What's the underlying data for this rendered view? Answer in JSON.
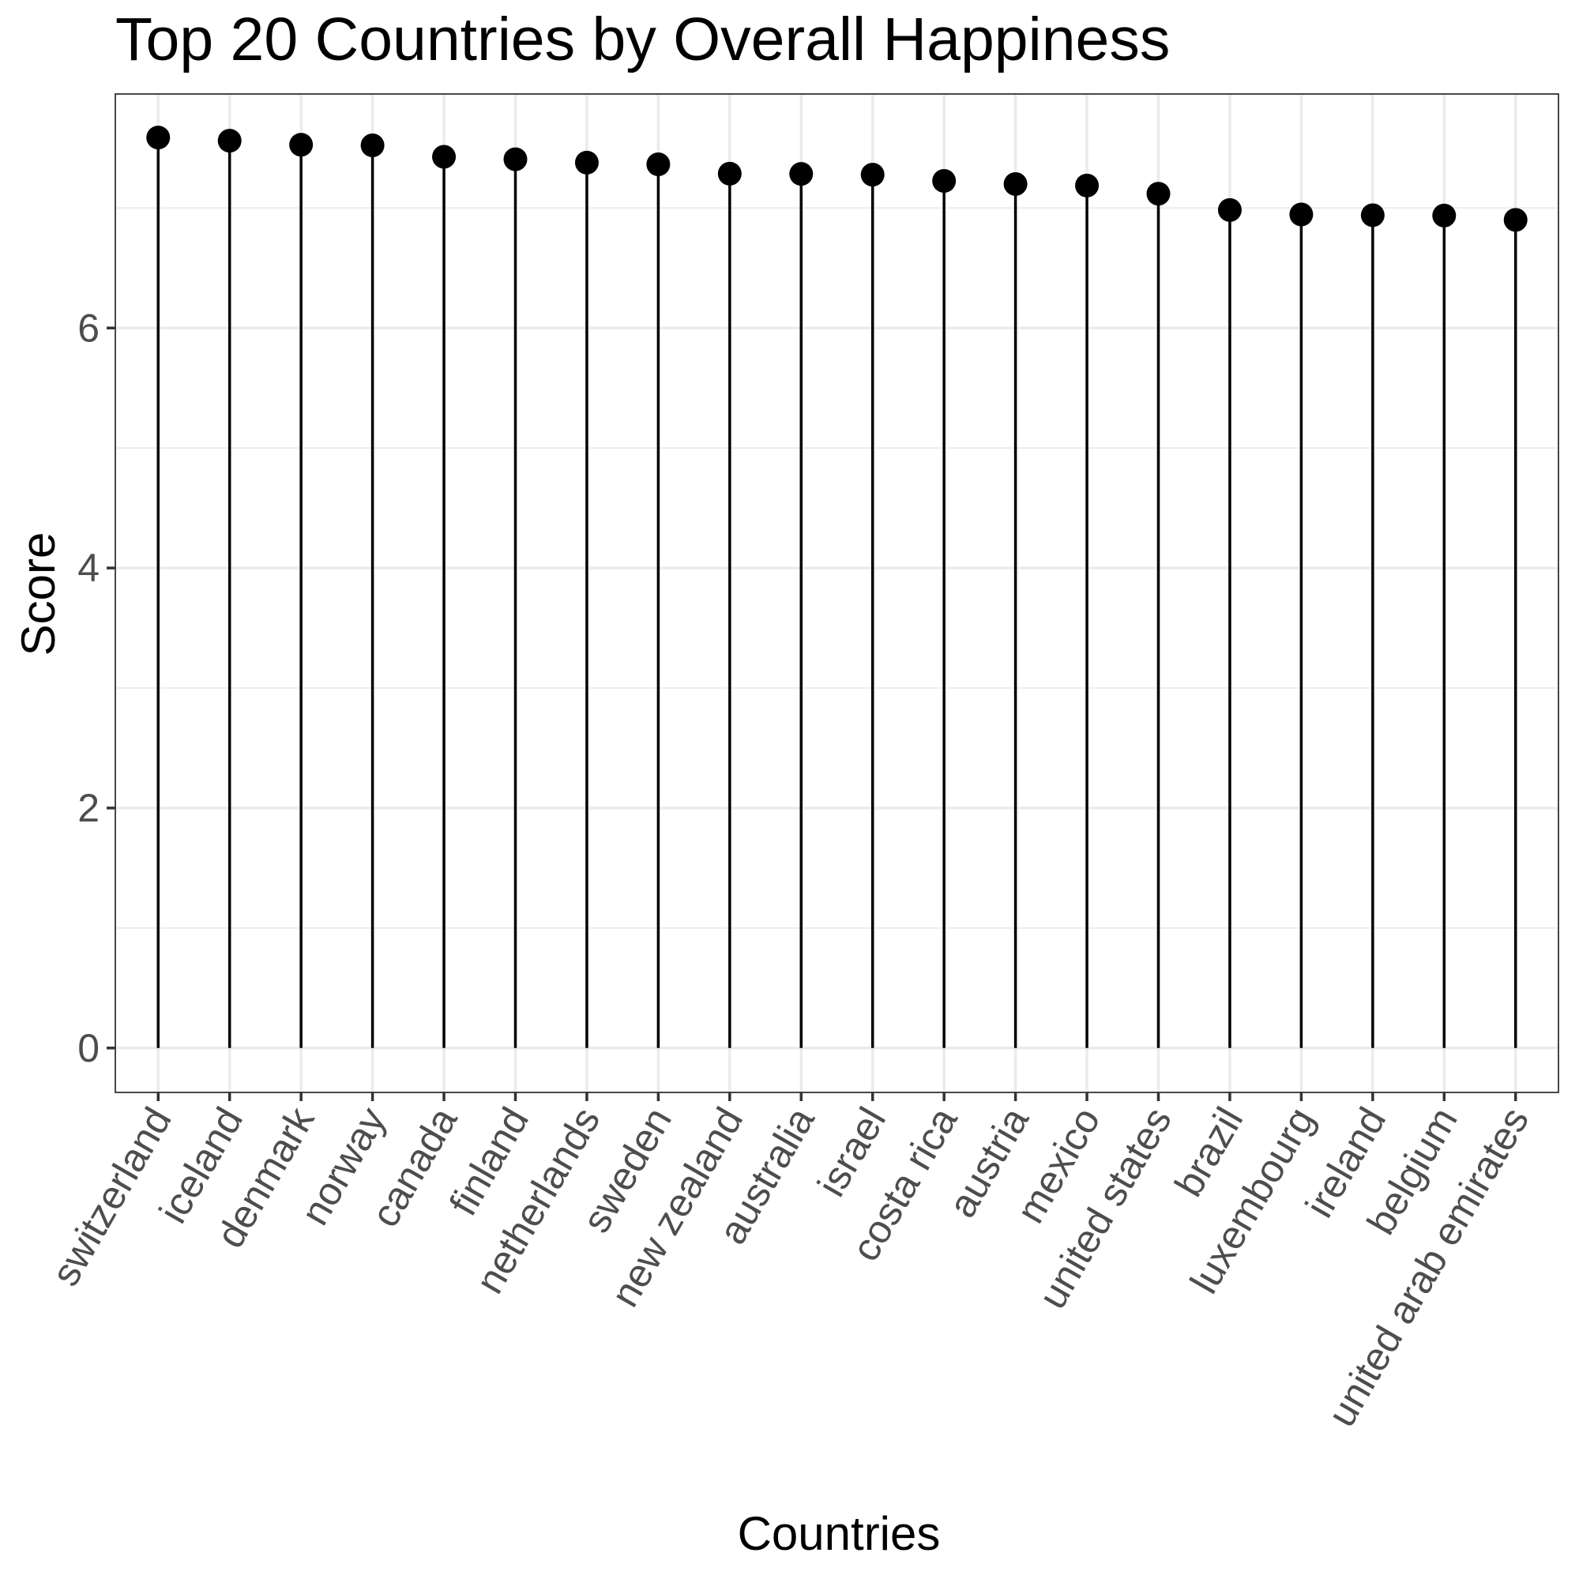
{
  "chart_data": {
    "type": "lollipop",
    "title": "Top 20 Countries by Overall Happiness",
    "xlabel": "Countries",
    "ylabel": "Score",
    "ylim": [
      -0.37,
      7.95
    ],
    "yticks": [
      0,
      2,
      4,
      6
    ],
    "grid": true,
    "categories": [
      "switzerland",
      "iceland",
      "denmark",
      "norway",
      "canada",
      "finland",
      "netherlands",
      "sweden",
      "new zealand",
      "australia",
      "israel",
      "costa rica",
      "austria",
      "mexico",
      "united states",
      "brazil",
      "luxembourg",
      "ireland",
      "belgium",
      "united arab emirates"
    ],
    "values": [
      7.587,
      7.561,
      7.527,
      7.522,
      7.427,
      7.406,
      7.378,
      7.364,
      7.286,
      7.284,
      7.278,
      7.226,
      7.2,
      7.187,
      7.119,
      6.983,
      6.946,
      6.94,
      6.937,
      6.901
    ]
  }
}
